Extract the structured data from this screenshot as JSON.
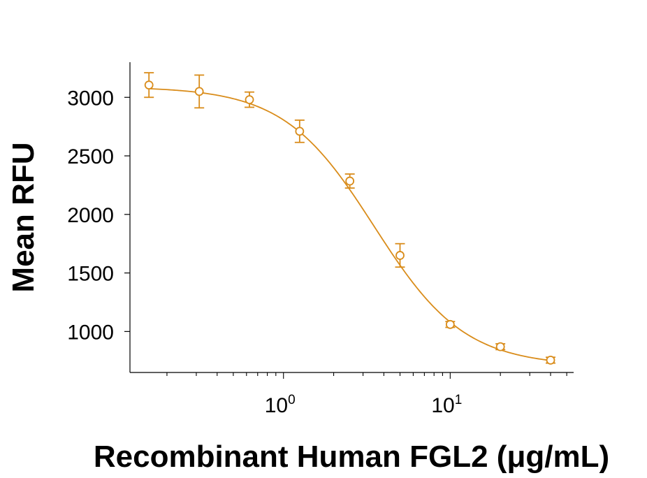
{
  "chart_data": {
    "type": "scatter",
    "xlabel": "Recombinant Human FGL2 (μg/mL)",
    "ylabel": "Mean RFU",
    "x_scale": "log",
    "xlim": [
      0.12,
      55
    ],
    "ylim": [
      650,
      3300
    ],
    "grid": false,
    "color": "#D98C1A",
    "x_ticks": [
      {
        "value": 1,
        "base": "10",
        "exp": "0"
      },
      {
        "value": 10,
        "base": "10",
        "exp": "1"
      }
    ],
    "y_ticks": [
      1000,
      1500,
      2000,
      2500,
      3000
    ],
    "y_tick_labels": [
      "1000",
      "1500",
      "2000",
      "2500",
      "3000"
    ],
    "points": [
      {
        "x": 0.156,
        "y": 3105,
        "err": 105
      },
      {
        "x": 0.3125,
        "y": 3050,
        "err": 140
      },
      {
        "x": 0.625,
        "y": 2980,
        "err": 65
      },
      {
        "x": 1.25,
        "y": 2710,
        "err": 95
      },
      {
        "x": 2.5,
        "y": 2285,
        "err": 60
      },
      {
        "x": 5,
        "y": 1650,
        "err": 100
      },
      {
        "x": 10,
        "y": 1060,
        "err": 25
      },
      {
        "x": 20,
        "y": 870,
        "err": 25
      },
      {
        "x": 40,
        "y": 755,
        "err": 25
      }
    ],
    "fit": {
      "model": "4PL",
      "top": 3090,
      "bottom": 705,
      "ec50": 3.5,
      "hill": 1.6
    }
  }
}
